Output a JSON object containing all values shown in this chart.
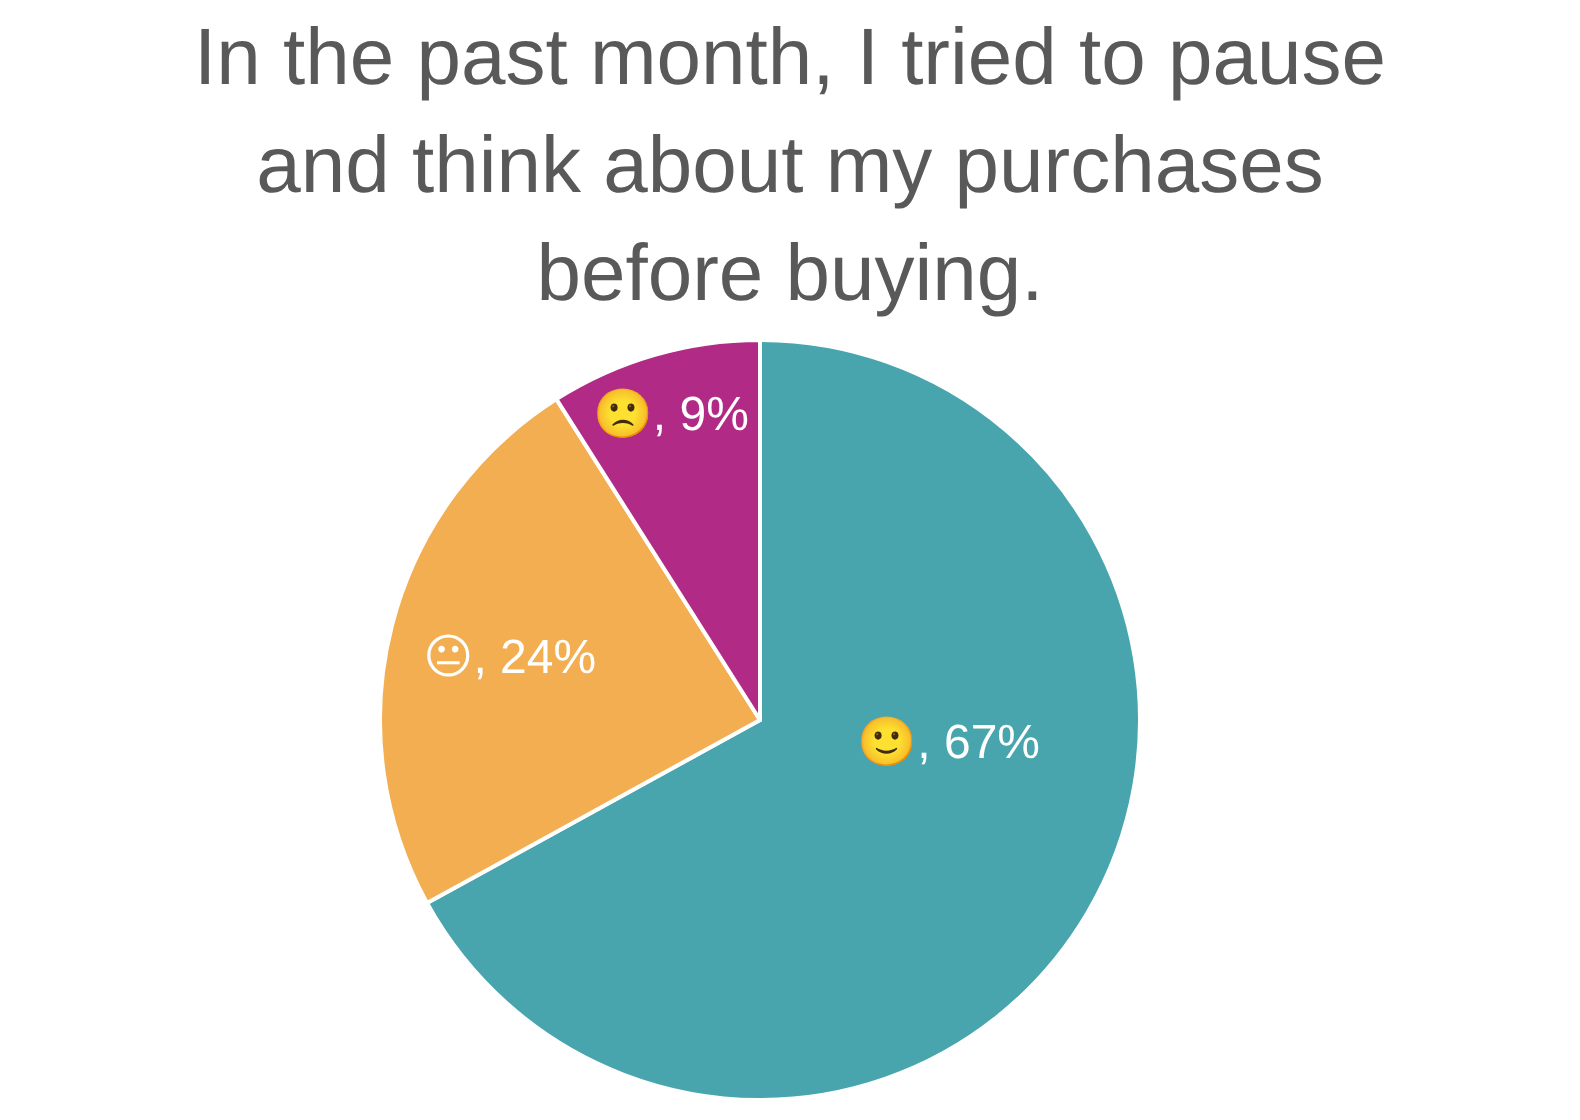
{
  "chart_data": {
    "type": "pie",
    "title": "In the past month, I tried to pause and think about my purchases before buying.",
    "categories": [
      "🙂",
      "😐",
      "🙁"
    ],
    "values": [
      67,
      24,
      9
    ],
    "value_labels": [
      "67%",
      "24%",
      "9%"
    ],
    "colors": [
      "#48a5ae",
      "#f3ae51",
      "#b12b86"
    ],
    "legend": false
  }
}
